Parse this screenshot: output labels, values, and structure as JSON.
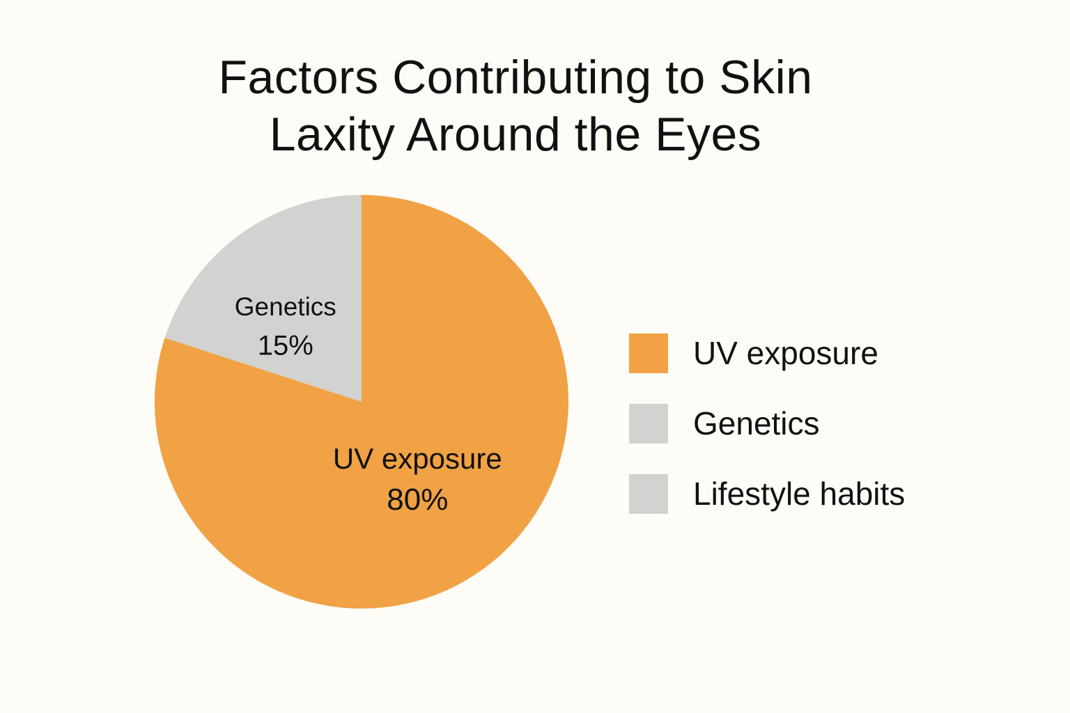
{
  "chart_data": {
    "type": "pie",
    "title_lines": [
      "Factors Contributing to Skin",
      "Laxity Around the Eyes"
    ],
    "slices": [
      {
        "name": "UV exposure",
        "value": 80,
        "label_value": "80%",
        "color": "#f0a244"
      },
      {
        "name": "Genetics",
        "value": 15,
        "label_value": "15%",
        "color": "#d2d2d0"
      },
      {
        "name": "Lifestyle habits",
        "value": 5,
        "label_value": "",
        "color": "#d2d2d0"
      }
    ],
    "legend": {
      "placement": "right",
      "items": [
        {
          "label": "UV exposure",
          "color": "#f0a244"
        },
        {
          "label": "Genetics",
          "color": "#d2d2d0"
        },
        {
          "label": "Lifestyle habits",
          "color": "#d2d2d0"
        }
      ]
    }
  }
}
